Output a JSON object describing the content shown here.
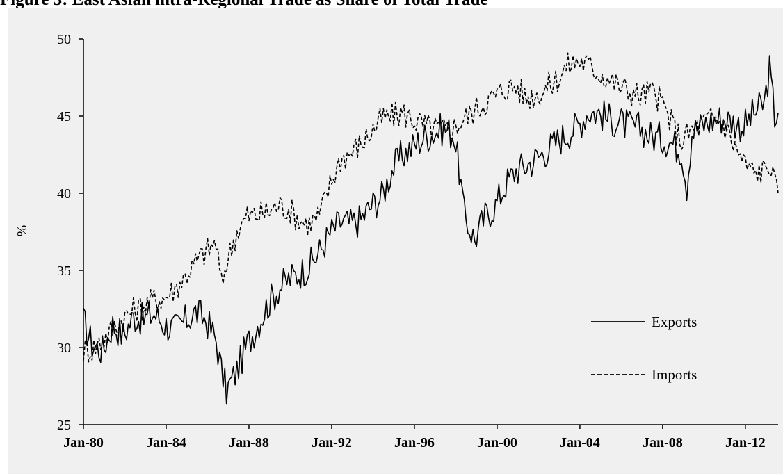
{
  "figure": {
    "title": "Figure 3: East Asian intra-Regional Trade as Share of Total Trade"
  },
  "chart_data": {
    "type": "line",
    "title": "Figure 3: East Asian intra-Regional Trade as Share of Total Trade",
    "xlabel": "",
    "ylabel": "%",
    "x_ticks": [
      "Jan-80",
      "Jan-84",
      "Jan-88",
      "Jan-92",
      "Jan-96",
      "Jan-00",
      "Jan-04",
      "Jan-08",
      "Jan-12"
    ],
    "x_range": [
      "1980-01",
      "2013-08"
    ],
    "ylim": [
      25,
      50
    ],
    "y_ticks": [
      25,
      30,
      35,
      40,
      45,
      50
    ],
    "grid": false,
    "legend_position": "right",
    "plot_background": "#f0f0f0",
    "series": [
      {
        "name": "Exports",
        "style": "solid",
        "color": "#000000",
        "points": [
          [
            "1980-01",
            31.7
          ],
          [
            "1980-06",
            30.2
          ],
          [
            "1980-12",
            29.8
          ],
          [
            "1981-06",
            31.5
          ],
          [
            "1981-12",
            30.8
          ],
          [
            "1982-06",
            32.0
          ],
          [
            "1982-12",
            31.8
          ],
          [
            "1983-06",
            32.2
          ],
          [
            "1983-12",
            31.5
          ],
          [
            "1984-06",
            31.2
          ],
          [
            "1984-12",
            31.7
          ],
          [
            "1985-06",
            32.3
          ],
          [
            "1985-12",
            31.8
          ],
          [
            "1986-06",
            30.5
          ],
          [
            "1986-09",
            28.5
          ],
          [
            "1986-12",
            27.2
          ],
          [
            "1987-06",
            28.5
          ],
          [
            "1987-12",
            30.2
          ],
          [
            "1988-06",
            31.5
          ],
          [
            "1988-12",
            32.8
          ],
          [
            "1989-06",
            33.8
          ],
          [
            "1989-12",
            34.4
          ],
          [
            "1990-06",
            34.8
          ],
          [
            "1990-12",
            35.3
          ],
          [
            "1991-06",
            36.2
          ],
          [
            "1991-12",
            37.4
          ],
          [
            "1992-06",
            38.1
          ],
          [
            "1992-12",
            38.0
          ],
          [
            "1993-06",
            38.3
          ],
          [
            "1993-12",
            39.2
          ],
          [
            "1994-06",
            39.8
          ],
          [
            "1994-12",
            41.5
          ],
          [
            "1995-06",
            42.5
          ],
          [
            "1995-12",
            43.0
          ],
          [
            "1996-06",
            43.6
          ],
          [
            "1996-12",
            43.9
          ],
          [
            "1997-06",
            44.2
          ],
          [
            "1997-12",
            43.8
          ],
          [
            "1998-03",
            41.5
          ],
          [
            "1998-06",
            38.5
          ],
          [
            "1998-12",
            37.0
          ],
          [
            "1999-06",
            38.5
          ],
          [
            "1999-12",
            39.2
          ],
          [
            "2000-06",
            40.6
          ],
          [
            "2000-12",
            41.5
          ],
          [
            "2001-06",
            41.8
          ],
          [
            "2001-12",
            42.3
          ],
          [
            "2002-06",
            42.8
          ],
          [
            "2002-12",
            43.4
          ],
          [
            "2003-06",
            43.9
          ],
          [
            "2003-12",
            44.4
          ],
          [
            "2004-06",
            45.3
          ],
          [
            "2004-12",
            45.2
          ],
          [
            "2005-06",
            44.8
          ],
          [
            "2005-12",
            44.6
          ],
          [
            "2006-06",
            44.3
          ],
          [
            "2006-12",
            44.2
          ],
          [
            "2007-06",
            43.7
          ],
          [
            "2007-12",
            43.6
          ],
          [
            "2008-06",
            43.3
          ],
          [
            "2008-12",
            42.8
          ],
          [
            "2009-03",
            40.5
          ],
          [
            "2009-06",
            44.0
          ],
          [
            "2009-12",
            44.4
          ],
          [
            "2010-06",
            44.7
          ],
          [
            "2010-12",
            44.9
          ],
          [
            "2011-06",
            44.6
          ],
          [
            "2011-12",
            44.3
          ],
          [
            "2012-06",
            45.2
          ],
          [
            "2012-12",
            45.8
          ],
          [
            "2013-03",
            48.0
          ],
          [
            "2013-06",
            45.0
          ],
          [
            "2013-08",
            45.2
          ]
        ]
      },
      {
        "name": "Imports",
        "style": "dashed",
        "color": "#000000",
        "points": [
          [
            "1980-01",
            29.8
          ],
          [
            "1980-06",
            29.9
          ],
          [
            "1980-12",
            30.5
          ],
          [
            "1981-06",
            31.2
          ],
          [
            "1981-12",
            31.9
          ],
          [
            "1982-06",
            32.4
          ],
          [
            "1982-12",
            32.7
          ],
          [
            "1983-06",
            33.1
          ],
          [
            "1983-12",
            33.2
          ],
          [
            "1984-06",
            33.8
          ],
          [
            "1984-12",
            34.6
          ],
          [
            "1985-06",
            35.5
          ],
          [
            "1985-12",
            36.2
          ],
          [
            "1986-06",
            36.8
          ],
          [
            "1986-09",
            34.0
          ],
          [
            "1986-12",
            35.5
          ],
          [
            "1987-06",
            37.5
          ],
          [
            "1987-12",
            38.5
          ],
          [
            "1988-06",
            38.6
          ],
          [
            "1988-12",
            38.8
          ],
          [
            "1989-06",
            39.2
          ],
          [
            "1989-12",
            39.0
          ],
          [
            "1990-06",
            38.3
          ],
          [
            "1990-12",
            38.0
          ],
          [
            "1991-06",
            38.6
          ],
          [
            "1991-12",
            40.5
          ],
          [
            "1992-06",
            42.2
          ],
          [
            "1992-12",
            42.6
          ],
          [
            "1993-06",
            43.2
          ],
          [
            "1993-12",
            44.0
          ],
          [
            "1994-06",
            44.8
          ],
          [
            "1994-12",
            45.0
          ],
          [
            "1995-06",
            45.2
          ],
          [
            "1995-12",
            44.8
          ],
          [
            "1996-06",
            44.4
          ],
          [
            "1996-12",
            44.2
          ],
          [
            "1997-06",
            44.1
          ],
          [
            "1997-12",
            44.3
          ],
          [
            "1998-06",
            44.8
          ],
          [
            "1998-12",
            45.4
          ],
          [
            "1999-06",
            45.9
          ],
          [
            "1999-12",
            46.3
          ],
          [
            "2000-06",
            46.8
          ],
          [
            "2000-12",
            46.9
          ],
          [
            "2001-06",
            46.2
          ],
          [
            "2001-12",
            46.4
          ],
          [
            "2002-06",
            46.9
          ],
          [
            "2002-12",
            47.4
          ],
          [
            "2003-06",
            48.3
          ],
          [
            "2003-12",
            48.6
          ],
          [
            "2004-06",
            48.3
          ],
          [
            "2004-12",
            47.8
          ],
          [
            "2005-06",
            47.4
          ],
          [
            "2005-12",
            46.9
          ],
          [
            "2006-06",
            46.6
          ],
          [
            "2006-12",
            46.3
          ],
          [
            "2007-06",
            46.6
          ],
          [
            "2007-12",
            46.0
          ],
          [
            "2008-06",
            44.6
          ],
          [
            "2008-12",
            43.4
          ],
          [
            "2009-06",
            44.1
          ],
          [
            "2009-12",
            44.5
          ],
          [
            "2010-06",
            44.9
          ],
          [
            "2010-12",
            44.6
          ],
          [
            "2011-06",
            43.2
          ],
          [
            "2011-12",
            42.0
          ],
          [
            "2012-06",
            41.3
          ],
          [
            "2012-12",
            41.5
          ],
          [
            "2013-03",
            42.0
          ],
          [
            "2013-06",
            40.5
          ],
          [
            "2013-08",
            40.0
          ]
        ]
      }
    ]
  }
}
